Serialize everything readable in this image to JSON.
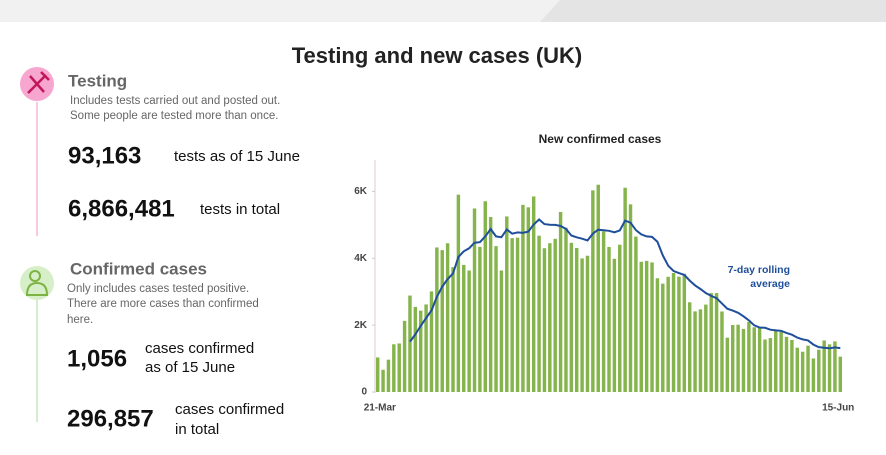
{
  "title": "Testing and new cases (UK)",
  "panel": {
    "testing": {
      "heading": "Testing",
      "description": [
        "Includes tests carried out and posted out.",
        "Some people are tested more than once."
      ],
      "daily_value": "93,163",
      "daily_text": "tests as of 15 June",
      "total_value": "6,866,481",
      "total_text": "tests in total"
    },
    "cases": {
      "heading": "Confirmed cases",
      "description": [
        "Only includes cases tested positive.",
        "There are more cases than confirmed",
        "here."
      ],
      "daily_value": "1,056",
      "daily_text": [
        "cases confirmed",
        "as of 15 June"
      ],
      "total_value": "296,857",
      "total_text": [
        "cases confirmed",
        "in total"
      ]
    }
  },
  "chart_data": {
    "type": "bar",
    "title": "New confirmed cases",
    "categories": [
      "21-Mar",
      null,
      null,
      null,
      null,
      null,
      null,
      null,
      null,
      null,
      null,
      null,
      null,
      null,
      null,
      null,
      null,
      null,
      null,
      null,
      null,
      null,
      null,
      null,
      null,
      null,
      null,
      null,
      null,
      null,
      null,
      null,
      null,
      null,
      null,
      null,
      null,
      null,
      null,
      null,
      null,
      null,
      null,
      null,
      null,
      null,
      null,
      null,
      null,
      null,
      null,
      null,
      null,
      null,
      null,
      null,
      null,
      null,
      null,
      null,
      null,
      null,
      null,
      null,
      null,
      null,
      null,
      null,
      null,
      null,
      null,
      null,
      null,
      null,
      null,
      null,
      null,
      null,
      null,
      null,
      null,
      null,
      null,
      null,
      null,
      null,
      "15-Jun"
    ],
    "values": [
      1035,
      665,
      967,
      1427,
      1452,
      2129,
      2885,
      2546,
      2433,
      2619,
      3009,
      4324,
      4244,
      4450,
      3735,
      5903,
      3802,
      3634,
      5491,
      4344,
      5706,
      5234,
      4364,
      3634,
      5252,
      4603,
      4617,
      5599,
      5525,
      5850,
      4676,
      4301,
      4451,
      4583,
      5386,
      4913,
      4463,
      4309,
      3996,
      4076,
      6032,
      6201,
      4806,
      4339,
      3985,
      4406,
      6111,
      5614,
      4649,
      3896,
      3923,
      3877,
      3403,
      3242,
      3446,
      3560,
      3451,
      3534,
      2684,
      2412,
      2472,
      2615,
      2959,
      2959,
      2409,
      1625,
      2004,
      2013,
      1887,
      2095,
      1936,
      1936,
      1570,
      1613,
      1871,
      1805,
      1650,
      1557,
      1326,
      1205,
      1387,
      1003,
      1266,
      1541,
      1425,
      1514,
      1056
    ],
    "color": "#86b44c",
    "line": {
      "name": [
        "7-day rolling",
        "average"
      ],
      "color": "#1f4e9a",
      "values": [
        null,
        null,
        null,
        null,
        null,
        null,
        1509,
        1724,
        1977,
        2213,
        2439,
        2849,
        3151,
        3375,
        3545,
        4041,
        4210,
        4299,
        4466,
        4480,
        4659,
        4873,
        4654,
        4630,
        4861,
        4734,
        4773,
        4758,
        4799,
        5011,
        5160,
        5024,
        5003,
        4998,
        4967,
        4880,
        4682,
        4629,
        4586,
        4532,
        4739,
        4856,
        4840,
        4823,
        4776,
        4835,
        5126,
        5066,
        4844,
        4714,
        4655,
        4639,
        4496,
        4086,
        3777,
        3621,
        3557,
        3502,
        3331,
        3190,
        3080,
        2961,
        2875,
        2805,
        2644,
        2493,
        2435,
        2369,
        2265,
        2142,
        1996,
        1928,
        1920,
        1864,
        1844,
        1832,
        1769,
        1715,
        1627,
        1575,
        1543,
        1419,
        1342,
        1326,
        1308,
        1334,
        1313
      ]
    },
    "ylim": [
      0,
      7000
    ],
    "yticks": [
      0,
      {
        "value": 2000,
        "label": "2K"
      },
      {
        "value": 4000,
        "label": "4K"
      },
      {
        "value": 6000,
        "label": "6K"
      }
    ],
    "grid": false
  }
}
